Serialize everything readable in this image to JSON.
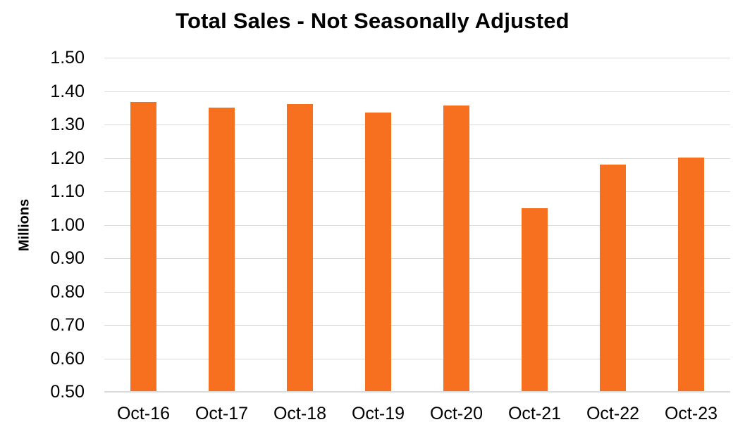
{
  "title": "Total Sales - Not Seasonally Adjusted",
  "colors": {
    "bar": "#F7701F",
    "gridline": "#D9D9D9",
    "axis_line": "#D9D9D9",
    "text": "#000000",
    "background": "#FFFFFF"
  },
  "chart_data": {
    "type": "bar",
    "title": "Total Sales - Not Seasonally Adjusted",
    "xlabel": "",
    "ylabel": "Millions",
    "categories": [
      "Oct-16",
      "Oct-17",
      "Oct-18",
      "Oct-19",
      "Oct-20",
      "Oct-21",
      "Oct-22",
      "Oct-23"
    ],
    "values": [
      1.367,
      1.35,
      1.362,
      1.335,
      1.357,
      1.049,
      1.181,
      1.201
    ],
    "ylim": [
      0.5,
      1.5
    ],
    "ytick_step": 0.1,
    "ytick_labels": [
      "1.50",
      "1.40",
      "1.30",
      "1.20",
      "1.10",
      "1.00",
      "0.90",
      "0.80",
      "0.70",
      "0.60",
      "0.50"
    ],
    "grid": true,
    "legend": false
  }
}
